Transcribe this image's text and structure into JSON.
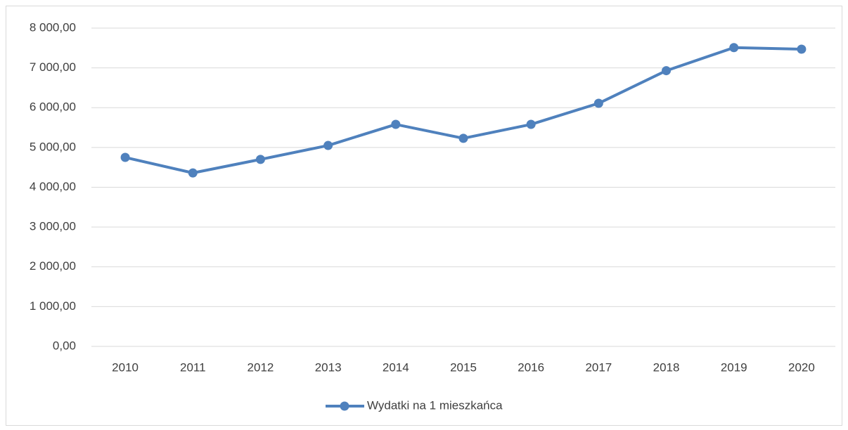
{
  "chart_data": {
    "type": "line",
    "categories": [
      "2010",
      "2011",
      "2012",
      "2013",
      "2014",
      "2015",
      "2016",
      "2017",
      "2018",
      "2019",
      "2020"
    ],
    "series": [
      {
        "name": "Wydatki na 1 mieszkańca",
        "color": "#4f81bd",
        "values": [
          4750,
          4360,
          4700,
          5050,
          5580,
          5230,
          5580,
          6110,
          6930,
          7510,
          7470
        ]
      }
    ],
    "ylim": [
      0,
      8000
    ],
    "yticks": [
      {
        "value": 0,
        "label": "0,00"
      },
      {
        "value": 1000,
        "label": "1 000,00"
      },
      {
        "value": 2000,
        "label": "2 000,00"
      },
      {
        "value": 3000,
        "label": "3 000,00"
      },
      {
        "value": 4000,
        "label": "4 000,00"
      },
      {
        "value": 5000,
        "label": "5 000,00"
      },
      {
        "value": 6000,
        "label": "6 000,00"
      },
      {
        "value": 7000,
        "label": "7 000,00"
      },
      {
        "value": 8000,
        "label": "8 000,00"
      }
    ],
    "grid": true,
    "legend": "bottom"
  }
}
